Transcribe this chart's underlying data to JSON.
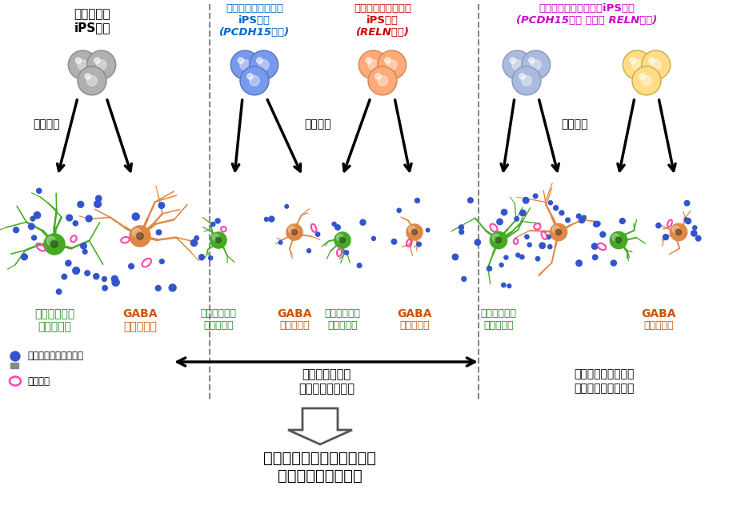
{
  "bg_color": "#ffffff",
  "col1_title_line1": "健常者由来",
  "col1_title_line2": "iPS細胞",
  "col1_title_color": "#000000",
  "col2_title_line1": "双極性障害患者由来",
  "col2_title_line2": "iPS細胞",
  "col2_title_line3": "(PCDH15欠失)",
  "col2_title_color": "#0066cc",
  "col3_title_line1": "統合失調症患者由来",
  "col3_title_line2": "iPS細胞",
  "col3_title_line3": "(RELN欠失)",
  "col3_title_color": "#cc0000",
  "col4_title_line1": "遺伝子変異を導入したiPS細胞",
  "col4_title_line2": "(PCDH15欠失 または RELN欠失)",
  "col4_title_color": "#cc00cc",
  "differentiation_label": "分化誘導",
  "glutamate_label1": "グルタミン酸",
  "glutamate_label2": "作動性神経",
  "glutamate_color": "#228B22",
  "gaba_label1": "GABA",
  "gaba_label2": "作動性神経",
  "gaba_color": "#cc5500",
  "legend_synapse_protein": "シナプス構成タンパク",
  "legend_synapse": "シナプス",
  "arrow_label1": "樹状突起の短縮",
  "arrow_label2": "シナプス数の減少",
  "right_label1": "患者由来神経細胞の",
  "right_label2": "特徴を部分的に再現",
  "bottom_label_line1": "疾患・神経の種類に依らず",
  "bottom_label_line2": "共通して観察された",
  "cell_color_normal": "#b0b0b0",
  "cell_color_bipolar": "#7799ee",
  "cell_color_schizo": "#ffaa77",
  "cell_color_gene_light": "#aabbdd",
  "cell_color_gene_yellow": "#ffdd88",
  "neuron_green": "#44aa22",
  "neuron_orange": "#dd8844",
  "synapse_dot_color": "#3355cc",
  "synapse_ring_color": "#ff44aa",
  "divider_color": "#888888"
}
